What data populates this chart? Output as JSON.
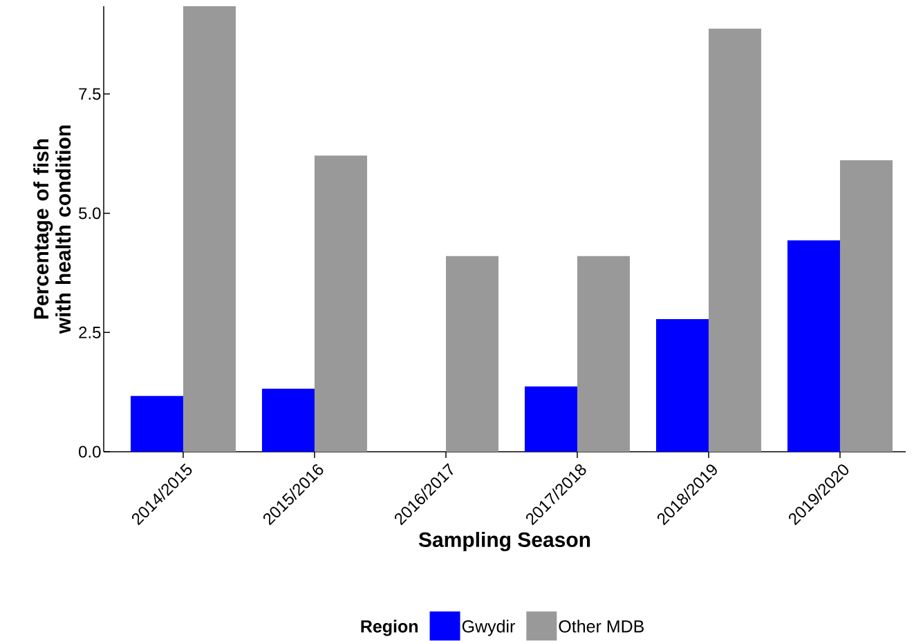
{
  "chart_data": {
    "type": "bar",
    "xlabel": "Sampling Season",
    "ylabel": "Percentage of fish with health condition",
    "legend_title": "Region",
    "legend": "bottom",
    "categories": [
      "2014/2015",
      "2015/2016",
      "2016/2017",
      "2017/2018",
      "2018/2019",
      "2019/2020"
    ],
    "series": [
      {
        "name": "Gwydir",
        "color": "#0000ff",
        "values": [
          1.17,
          1.32,
          0,
          1.37,
          2.78,
          4.43
        ]
      },
      {
        "name": "Other MDB",
        "color": "#999999",
        "values": [
          9.34,
          6.21,
          4.1,
          4.1,
          8.87,
          6.11
        ]
      }
    ],
    "ylim": [
      0,
      9.34
    ],
    "yticks": [
      {
        "value": 0,
        "label": "0.0"
      },
      2.5,
      {
        "value": 5,
        "label": "5.0"
      },
      7.5
    ],
    "grid": false
  }
}
